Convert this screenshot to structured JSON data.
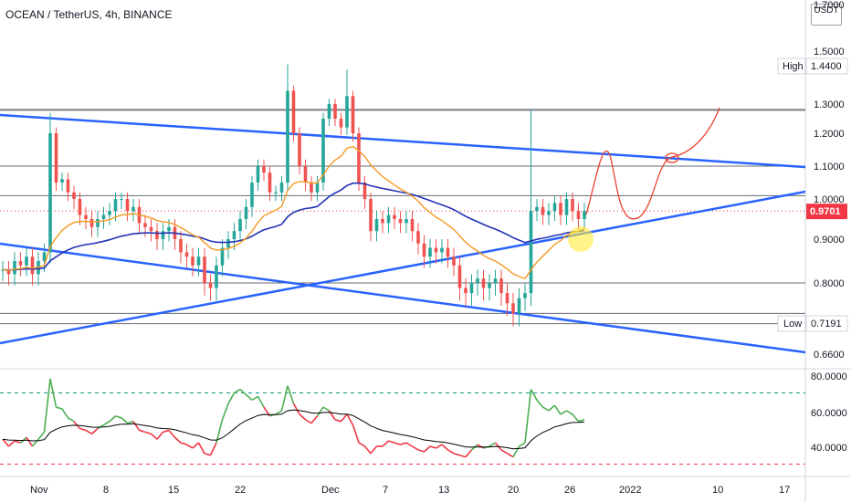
{
  "header": {
    "title": "OCEAN / TetherUS, 4h, BINANCE"
  },
  "price_axis": {
    "unit": "USDT",
    "ticks": [
      "1.7000",
      "1.5000",
      "1.4400",
      "1.3000",
      "1.2000",
      "1.1000",
      "1.0000",
      "0.9701",
      "0.9000",
      "0.8000",
      "0.7191",
      "0.6600"
    ],
    "high_label": "High",
    "high_value": "1.4400",
    "low_label": "Low",
    "low_value": "0.7191",
    "last_price": "0.9701",
    "last_price_color": "#f23645"
  },
  "indicator_axis": {
    "ticks": [
      "80.0000",
      "60.0000",
      "40.0000"
    ]
  },
  "time_axis": {
    "ticks": [
      "Nov",
      "8",
      "15",
      "22",
      "Dec",
      "7",
      "13",
      "20",
      "26",
      "2022",
      "10",
      "17"
    ]
  },
  "chart_data": {
    "type": "candlestick",
    "title": "OCEAN / TetherUS, 4h, BINANCE",
    "x_categories": [
      "Nov",
      "8",
      "15",
      "22",
      "Dec",
      "7",
      "13",
      "20",
      "26",
      "2022",
      "10",
      "17"
    ],
    "ylim": [
      0.62,
      1.78
    ],
    "horizontal_levels": [
      1.28,
      1.1,
      1.01,
      0.8,
      0.74,
      0.72
    ],
    "high": 1.44,
    "low": 0.7191,
    "last": 0.9701,
    "closes": [
      0.83,
      0.82,
      0.85,
      0.84,
      0.86,
      0.82,
      0.85,
      0.87,
      1.2,
      1.05,
      1.06,
      1.02,
      1.0,
      0.96,
      0.95,
      0.93,
      0.95,
      0.96,
      0.97,
      1.0,
      1.0,
      0.97,
      0.98,
      0.94,
      0.93,
      0.92,
      0.9,
      0.92,
      0.93,
      0.9,
      0.87,
      0.86,
      0.84,
      0.86,
      0.8,
      0.79,
      0.84,
      0.88,
      0.9,
      0.92,
      0.95,
      0.98,
      1.05,
      1.1,
      1.08,
      1.02,
      1.02,
      1.05,
      1.35,
      1.2,
      1.1,
      1.05,
      1.02,
      1.05,
      1.25,
      1.3,
      1.25,
      1.22,
      1.33,
      1.2,
      1.05,
      1.0,
      0.92,
      0.95,
      0.94,
      0.96,
      0.95,
      0.94,
      0.95,
      0.92,
      0.89,
      0.86,
      0.88,
      0.87,
      0.88,
      0.86,
      0.84,
      0.79,
      0.78,
      0.8,
      0.81,
      0.79,
      0.8,
      0.81,
      0.78,
      0.76,
      0.74,
      0.77,
      0.78,
      0.97,
      0.98,
      0.96,
      0.97,
      0.99,
      0.96,
      1.0,
      0.97,
      0.95,
      0.97
    ],
    "annotations": [
      "descending channel trendlines",
      "ascending support trendline",
      "projected price path"
    ],
    "indicator": {
      "type": "rsi",
      "levels": [
        70,
        30
      ],
      "ylim": [
        26,
        84
      ],
      "values": [
        44,
        40,
        43,
        42,
        45,
        40,
        44,
        48,
        78,
        62,
        61,
        56,
        54,
        50,
        49,
        47,
        50,
        52,
        54,
        57,
        56,
        53,
        54,
        49,
        48,
        47,
        44,
        48,
        49,
        45,
        42,
        41,
        39,
        42,
        36,
        35,
        42,
        55,
        64,
        70,
        72,
        69,
        66,
        68,
        62,
        57,
        58,
        60,
        74,
        64,
        58,
        55,
        53,
        57,
        62,
        60,
        55,
        54,
        58,
        52,
        42,
        40,
        36,
        40,
        40,
        43,
        42,
        41,
        42,
        40,
        38,
        37,
        40,
        39,
        41,
        38,
        36,
        35,
        34,
        38,
        41,
        39,
        40,
        42,
        38,
        36,
        34,
        40,
        42,
        72,
        66,
        62,
        60,
        63,
        58,
        60,
        58,
        54,
        55
      ],
      "signal_color": "#000000",
      "up_color": "#4caf50",
      "down_color": "#f23645",
      "level_color": "#089981"
    },
    "colors": {
      "up": "#26a69a",
      "down": "#ef5350",
      "ma_fast": "#f59a23",
      "ma_slow": "#2233b6",
      "trendline": "#2962ff",
      "level": "#434651",
      "projection": "#e8432f",
      "highlight": "#ffeb3b"
    }
  }
}
